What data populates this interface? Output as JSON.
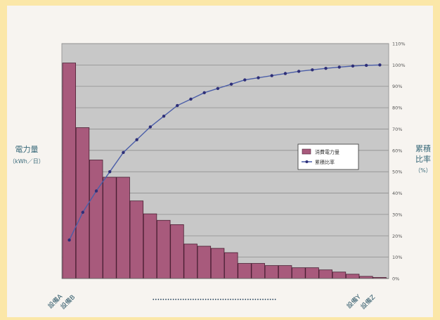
{
  "colors": {
    "background": "#fbe7a8",
    "chart_area": "#f7f4f0",
    "plot_area": "#c8c8c8",
    "bar_fill": "#a85a7c",
    "bar_stroke": "#4a1e33",
    "line": "#4b5ea8",
    "marker": "#2e2f78",
    "axis_text": "#555555",
    "label_text": "#3a6a7a",
    "rotated_label_text": "#2a5566"
  },
  "chart_data": {
    "type": "bar+line",
    "categories": [
      "設備A",
      "設備B",
      "",
      "",
      "",
      "",
      "",
      "",
      "",
      "",
      "",
      "",
      "",
      "",
      "",
      "",
      "",
      "",
      "",
      "",
      "",
      "",
      "設備Y",
      "設備Z"
    ],
    "series": [
      {
        "axis": "left",
        "type": "bar",
        "values": [
          100,
          70,
          55,
          47,
          47,
          36,
          30,
          27,
          25,
          16,
          15,
          14,
          12,
          7,
          7,
          6,
          6,
          5,
          5,
          4,
          3,
          2,
          1,
          0.5
        ]
      },
      {
        "axis": "right",
        "type": "line",
        "values": [
          18,
          31,
          41,
          50,
          59,
          65,
          71,
          76,
          81,
          84,
          87,
          89,
          91,
          93,
          94,
          95,
          96,
          97,
          97.7,
          98.4,
          99,
          99.5,
          99.8,
          100
        ]
      }
    ],
    "legend": {
      "placement": "right",
      "entries": [
        "消費電力量",
        "累積比率"
      ]
    },
    "ylabel_left": [
      "電力量",
      "（kWh／日）"
    ],
    "ylabel_right": [
      "累積",
      "比率",
      "（%）"
    ],
    "y_right_ticks": [
      "0%",
      "10%",
      "20%",
      "30%",
      "40%",
      "50%",
      "60%",
      "70%",
      "80%",
      "90%",
      "100%",
      "110%"
    ],
    "y_right_range": [
      0,
      110
    ],
    "grid": true,
    "x_ellipsis": "••••••••••••••••••••••••••••••••••••••••••••••••••"
  }
}
